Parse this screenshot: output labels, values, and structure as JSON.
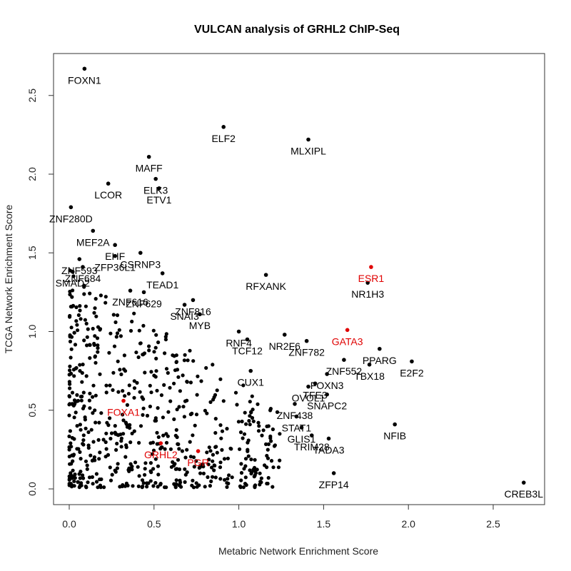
{
  "chart_data": {
    "type": "scatter",
    "title": "VULCAN analysis of GRHL2 ChIP-Seq",
    "xlabel": "Metabric Network Enrichment Score",
    "ylabel": "TCGA Network Enrichment Score",
    "xlim": [
      -0.1,
      2.8
    ],
    "ylim": [
      -0.1,
      2.8
    ],
    "xticks": [
      "0.0",
      "0.5",
      "1.0",
      "1.5",
      "2.0",
      "2.5"
    ],
    "yticks": [
      "0.0",
      "0.5",
      "1.0",
      "1.5",
      "2.0",
      "2.5"
    ],
    "grid": false,
    "colors": {
      "default": "#000000",
      "highlight": "#e00000"
    },
    "labeled_points": [
      {
        "label": "FOXN1",
        "x": 0.09,
        "y": 2.67
      },
      {
        "label": "ELF2",
        "x": 0.91,
        "y": 2.3
      },
      {
        "label": "MLXIPL",
        "x": 1.41,
        "y": 2.22
      },
      {
        "label": "MAFF",
        "x": 0.47,
        "y": 2.11
      },
      {
        "label": "LCOR",
        "x": 0.23,
        "y": 1.94
      },
      {
        "label": "ELK3",
        "x": 0.51,
        "y": 1.97
      },
      {
        "label": "ETV1",
        "x": 0.53,
        "y": 1.91
      },
      {
        "label": "ZNF280D",
        "x": 0.01,
        "y": 1.79
      },
      {
        "label": "MEF2A",
        "x": 0.14,
        "y": 1.64
      },
      {
        "label": "EHF",
        "x": 0.27,
        "y": 1.55
      },
      {
        "label": "ZFP36L1",
        "x": 0.27,
        "y": 1.48
      },
      {
        "label": "CSRNP3",
        "x": 0.42,
        "y": 1.5
      },
      {
        "label": "ZNF593",
        "x": 0.06,
        "y": 1.46
      },
      {
        "label": "ZNF684",
        "x": 0.08,
        "y": 1.41
      },
      {
        "label": "SMAD2",
        "x": 0.02,
        "y": 1.38
      },
      {
        "label": "RFXANK",
        "x": 1.16,
        "y": 1.36
      },
      {
        "label": "ESR1",
        "x": 1.78,
        "y": 1.41,
        "highlight": true
      },
      {
        "label": "NR1H3",
        "x": 1.76,
        "y": 1.31
      },
      {
        "label": "TEAD1",
        "x": 0.55,
        "y": 1.37
      },
      {
        "label": "ZNF616",
        "x": 0.36,
        "y": 1.26
      },
      {
        "label": "ZNF629",
        "x": 0.44,
        "y": 1.25
      },
      {
        "label": "ZNF816",
        "x": 0.73,
        "y": 1.2
      },
      {
        "label": "SNAI3",
        "x": 0.68,
        "y": 1.17
      },
      {
        "label": "MYB",
        "x": 0.77,
        "y": 1.11
      },
      {
        "label": "RNF4",
        "x": 1.0,
        "y": 1.0
      },
      {
        "label": "GATA3",
        "x": 1.64,
        "y": 1.01,
        "highlight": true
      },
      {
        "label": "TCF12",
        "x": 1.05,
        "y": 0.95
      },
      {
        "label": "NR2F6",
        "x": 1.27,
        "y": 0.98
      },
      {
        "label": "ZNF782",
        "x": 1.4,
        "y": 0.94
      },
      {
        "label": "PPARG",
        "x": 1.83,
        "y": 0.89
      },
      {
        "label": "ZNF552",
        "x": 1.62,
        "y": 0.82
      },
      {
        "label": "CUX1",
        "x": 1.07,
        "y": 0.75
      },
      {
        "label": "E2F2",
        "x": 2.02,
        "y": 0.81
      },
      {
        "label": "FOXN3",
        "x": 1.52,
        "y": 0.73
      },
      {
        "label": "TBX18",
        "x": 1.77,
        "y": 0.79
      },
      {
        "label": "TFE3",
        "x": 1.45,
        "y": 0.67
      },
      {
        "label": "OVOL1",
        "x": 1.41,
        "y": 0.65
      },
      {
        "label": "SNAPC2",
        "x": 1.52,
        "y": 0.6
      },
      {
        "label": "ZNF438",
        "x": 1.33,
        "y": 0.54
      },
      {
        "label": "FOXA1",
        "x": 0.32,
        "y": 0.56,
        "highlight": true
      },
      {
        "label": "STAT1",
        "x": 1.34,
        "y": 0.46
      },
      {
        "label": "GLIS1",
        "x": 1.37,
        "y": 0.39
      },
      {
        "label": "NFIB",
        "x": 1.92,
        "y": 0.41
      },
      {
        "label": "TRIM28",
        "x": 1.43,
        "y": 0.34
      },
      {
        "label": "GRHL2",
        "x": 0.54,
        "y": 0.29,
        "highlight": true
      },
      {
        "label": "TADA3",
        "x": 1.53,
        "y": 0.32
      },
      {
        "label": "PGR",
        "x": 0.76,
        "y": 0.24,
        "highlight": true
      },
      {
        "label": "ZFP14",
        "x": 1.56,
        "y": 0.1
      },
      {
        "label": "CREB3L",
        "x": 2.68,
        "y": 0.04
      }
    ]
  }
}
